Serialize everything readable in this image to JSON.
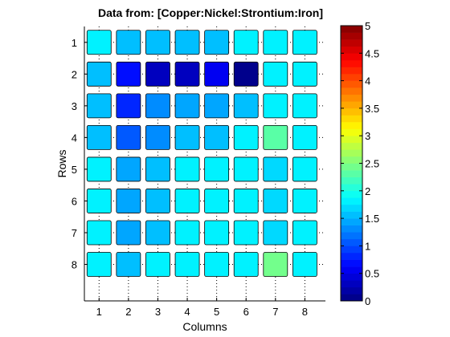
{
  "chart_data": {
    "type": "heatmap",
    "title": "Data from: [Copper:Nickel:Strontium:Iron]",
    "xlabel": "Columns",
    "ylabel": "Rows",
    "x": [
      1,
      2,
      3,
      4,
      5,
      6,
      7,
      8
    ],
    "y": [
      1,
      2,
      3,
      4,
      5,
      6,
      7,
      8
    ],
    "x_tick_labels": [
      "1",
      "2",
      "3",
      "4",
      "5",
      "6",
      "7",
      "8"
    ],
    "y_tick_labels": [
      "1",
      "2",
      "3",
      "4",
      "5",
      "6",
      "7",
      "8"
    ],
    "values": [
      [
        1.8,
        1.6,
        1.6,
        1.6,
        1.6,
        1.8,
        1.8,
        1.8
      ],
      [
        1.6,
        0.7,
        0.3,
        0.3,
        0.6,
        0.1,
        1.8,
        1.8
      ],
      [
        1.6,
        0.8,
        1.3,
        1.4,
        1.4,
        1.6,
        1.8,
        1.8
      ],
      [
        1.6,
        1.1,
        1.3,
        1.6,
        1.6,
        1.8,
        2.3,
        1.8
      ],
      [
        1.8,
        1.4,
        1.6,
        1.8,
        1.8,
        1.8,
        1.7,
        1.8
      ],
      [
        1.8,
        1.4,
        1.6,
        1.8,
        1.8,
        1.8,
        1.7,
        1.8
      ],
      [
        1.8,
        1.4,
        1.6,
        1.8,
        1.8,
        1.8,
        1.7,
        1.8
      ],
      [
        1.8,
        1.6,
        1.8,
        1.8,
        1.8,
        1.8,
        2.4,
        1.8
      ]
    ],
    "colorbar": {
      "range": [
        0,
        5
      ],
      "tick_labels": [
        "0",
        "0.5",
        "1",
        "1.5",
        "2",
        "2.5",
        "3",
        "3.5",
        "4",
        "4.5",
        "5"
      ],
      "colormap": "jet"
    },
    "grid": true
  }
}
